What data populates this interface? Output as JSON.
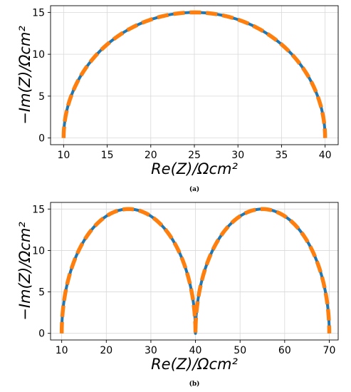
{
  "chart_data": [
    {
      "type": "line",
      "caption": "(a)",
      "xlabel": "Re(Z)/Ωcm²",
      "ylabel": "−Im(Z)/Ωcm²",
      "xlim": [
        8.5,
        41.5
      ],
      "ylim": [
        -0.8,
        15.8
      ],
      "xticks": [
        10,
        15,
        20,
        25,
        30,
        35,
        40
      ],
      "yticks": [
        0,
        5,
        10,
        15
      ],
      "grid": true,
      "series": [
        {
          "color": "#1f77b4",
          "style": "solid",
          "arcs": [
            {
              "start": 10,
              "end": 40,
              "peak": 15
            }
          ]
        },
        {
          "color": "#ff7f0e",
          "style": "dashed",
          "arcs": [
            {
              "start": 10,
              "end": 40,
              "peak": 15
            }
          ]
        }
      ]
    },
    {
      "type": "line",
      "caption": "(b)",
      "xlabel": "Re(Z)/Ωcm²",
      "ylabel": "−Im(Z)/Ωcm²",
      "xlim": [
        7.5,
        72
      ],
      "ylim": [
        -0.8,
        15.8
      ],
      "xticks": [
        10,
        20,
        30,
        40,
        50,
        60,
        70
      ],
      "yticks": [
        0,
        5,
        10,
        15
      ],
      "grid": true,
      "series": [
        {
          "color": "#1f77b4",
          "style": "solid",
          "arcs": [
            {
              "start": 10,
              "end": 40,
              "peak": 15
            },
            {
              "start": 40,
              "end": 70,
              "peak": 15
            }
          ]
        },
        {
          "color": "#ff7f0e",
          "style": "dashed",
          "arcs": [
            {
              "start": 10,
              "end": 40,
              "peak": 15
            },
            {
              "start": 40,
              "end": 70,
              "peak": 15
            }
          ]
        }
      ]
    }
  ]
}
